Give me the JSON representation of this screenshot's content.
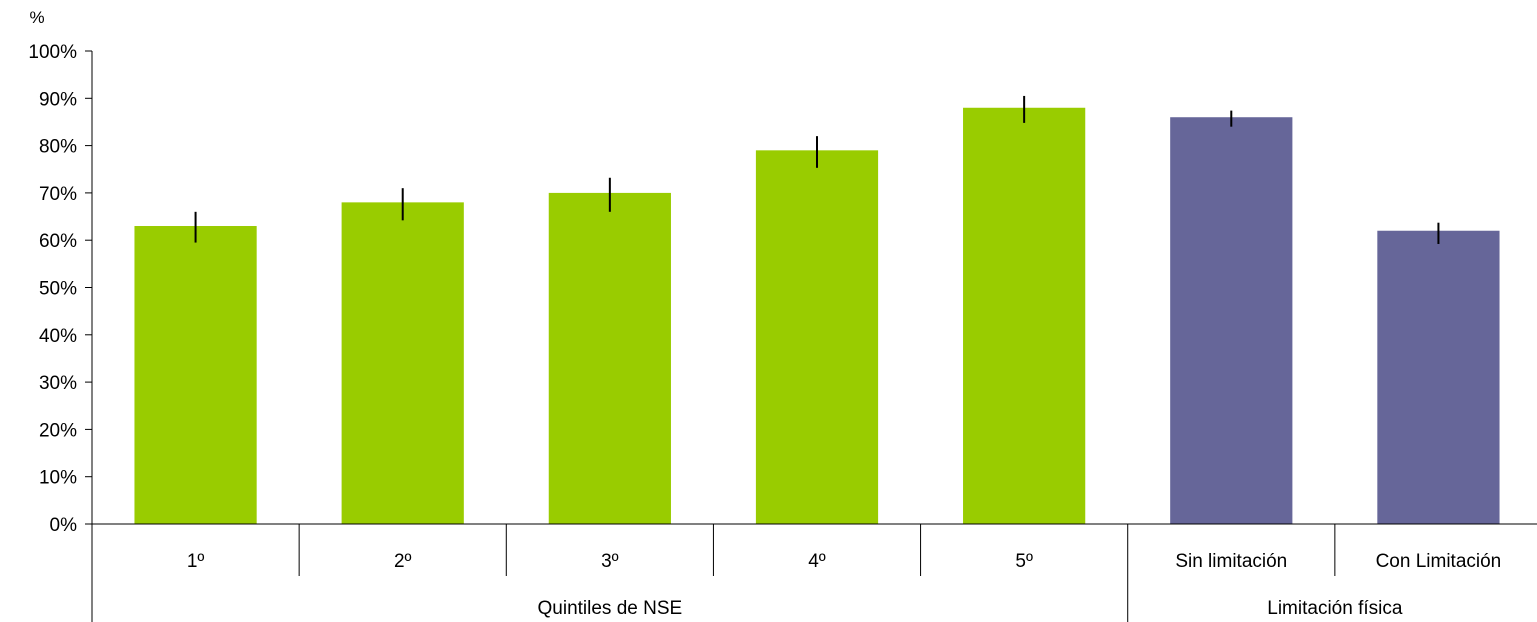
{
  "chart_data": {
    "type": "bar",
    "ylabel": "%",
    "ylim": [
      0,
      100
    ],
    "yticks": [
      "0%",
      "10%",
      "20%",
      "30%",
      "40%",
      "50%",
      "60%",
      "70%",
      "80%",
      "90%",
      "100%"
    ],
    "categories": [
      "1º",
      "2º",
      "3º",
      "4º",
      "5º",
      "Sin limitación",
      "Con Limitación"
    ],
    "values": [
      63,
      68,
      70,
      79,
      88,
      86,
      62
    ],
    "error_low": [
      59.5,
      64.2,
      66.0,
      75.3,
      84.8,
      84.0,
      59.2
    ],
    "error_high": [
      66.0,
      71.0,
      73.2,
      82.0,
      90.5,
      87.4,
      63.7
    ],
    "bar_colors": [
      "#99cc00",
      "#99cc00",
      "#99cc00",
      "#99cc00",
      "#99cc00",
      "#666699",
      "#666699"
    ],
    "groups": [
      {
        "label": "Quintiles de NSE",
        "categories": [
          "1º",
          "2º",
          "3º",
          "4º",
          "5º"
        ]
      },
      {
        "label": "Limitación física",
        "categories": [
          "Sin limitación",
          "Con Limitación"
        ]
      }
    ],
    "grid": false,
    "legend": "none"
  }
}
